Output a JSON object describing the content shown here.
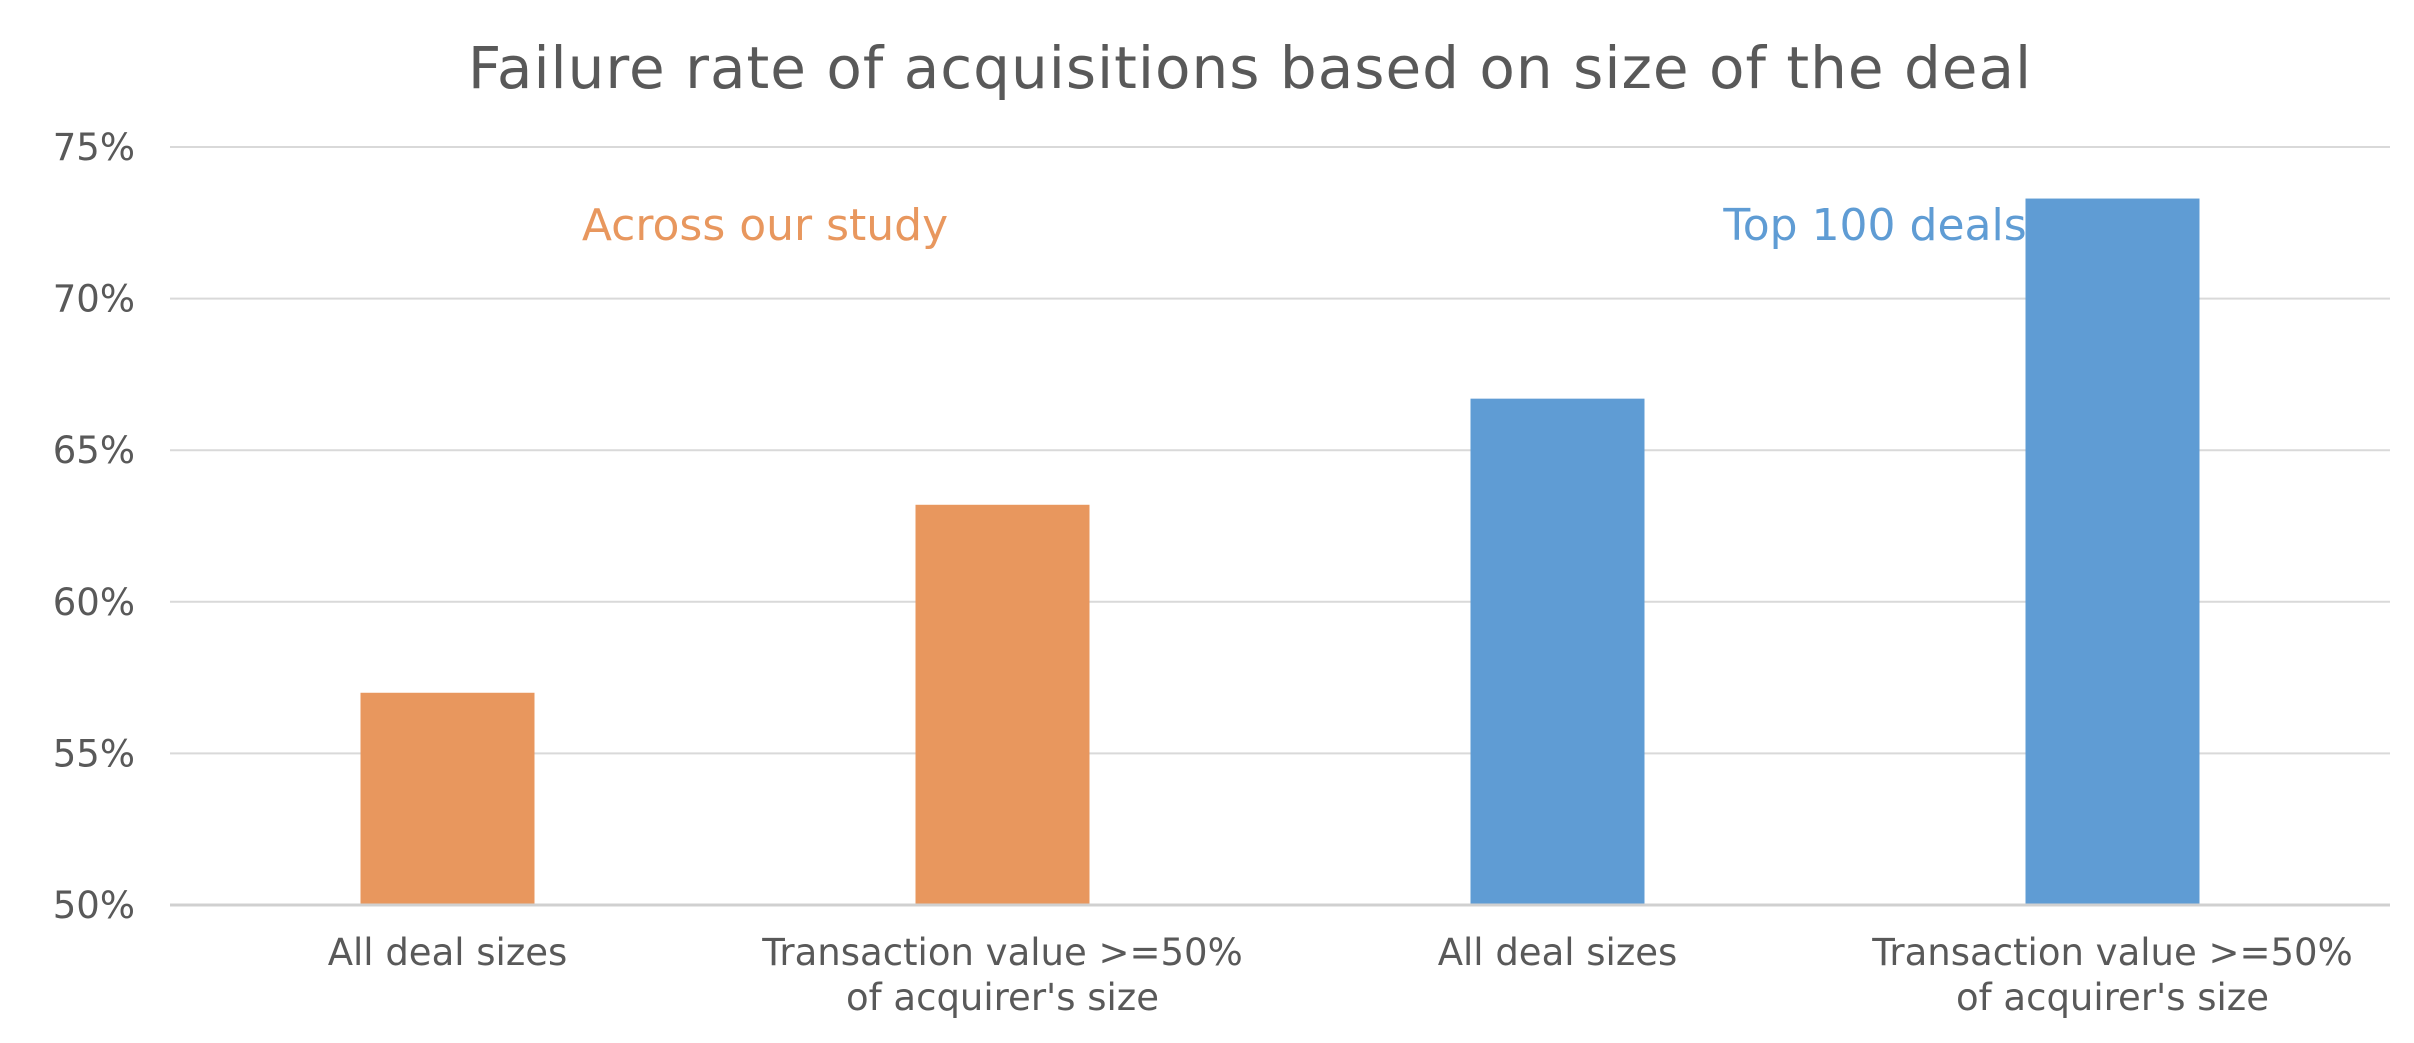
{
  "chart_data": {
    "type": "bar",
    "title": "Failure rate of acquisitions based on size of the deal",
    "categories": [
      [
        "All deal sizes"
      ],
      [
        "Transaction value >=50%",
        "of acquirer's size"
      ],
      [
        "All deal sizes"
      ],
      [
        "Transaction value >=50%",
        "of acquirer's size"
      ]
    ],
    "values": [
      57.0,
      63.2,
      66.7,
      73.3
    ],
    "bar_colors": [
      "#E8975E",
      "#E8975E",
      "#5F9CD4",
      "#5F9CD4"
    ],
    "ylim": [
      50,
      75
    ],
    "yticks": [
      50,
      55,
      60,
      65,
      70,
      75
    ],
    "ytick_labels": [
      "50%",
      "55%",
      "60%",
      "65%",
      "70%",
      "75%"
    ],
    "grid": true,
    "xlabel": "",
    "ylabel": "",
    "annotations": [
      {
        "text": "Across our study",
        "color": "#E8975E",
        "category_span": [
          0,
          1
        ]
      },
      {
        "text": "Top 100 deals",
        "color": "#5F9CD4",
        "category_span": [
          2,
          3
        ]
      }
    ]
  }
}
